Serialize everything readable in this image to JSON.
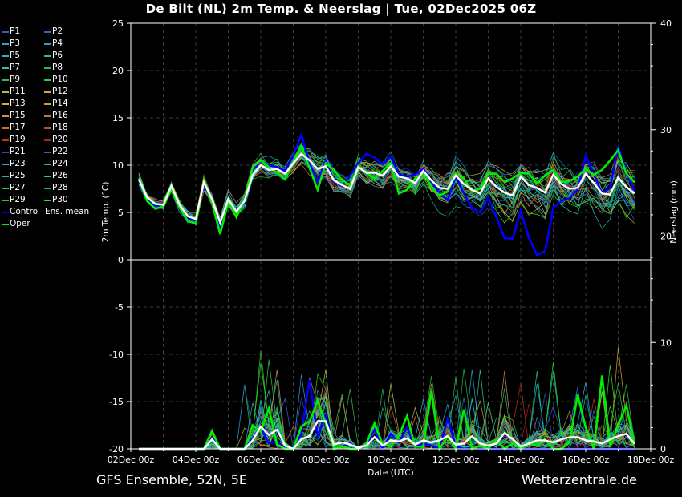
{
  "title": "De Bilt  (NL)  2m Temp. & Neerslag | Tue, 02Dec2025 06Z",
  "footer_left": "GFS Ensemble, 52N, 5E",
  "footer_right": "Wetterzentrale.de",
  "colors": {
    "background": "#000000",
    "control": "#0000ff",
    "oper": "#00ee00",
    "mean": "#ffffff",
    "grid": "#3a3a3a"
  },
  "legend": [
    {
      "label": "P1",
      "color": "#2f5fd0"
    },
    {
      "label": "P2",
      "color": "#2a6ad8"
    },
    {
      "label": "P3",
      "color": "#2e9fd8"
    },
    {
      "label": "P4",
      "color": "#2a9dc0"
    },
    {
      "label": "P5",
      "color": "#22b8c8"
    },
    {
      "label": "P6",
      "color": "#20c0a0"
    },
    {
      "label": "P7",
      "color": "#20c890"
    },
    {
      "label": "P8",
      "color": "#20b868"
    },
    {
      "label": "P9",
      "color": "#30c050"
    },
    {
      "label": "P10",
      "color": "#28d030"
    },
    {
      "label": "P11",
      "color": "#a8c040"
    },
    {
      "label": "P12",
      "color": "#c8b030"
    },
    {
      "label": "P13",
      "color": "#c8b040"
    },
    {
      "label": "P14",
      "color": "#d0a030"
    },
    {
      "label": "P15",
      "color": "#c89060"
    },
    {
      "label": "P16",
      "color": "#c07840"
    },
    {
      "label": "P17",
      "color": "#d07030"
    },
    {
      "label": "P18",
      "color": "#c05030"
    },
    {
      "label": "P19",
      "color": "#c03020"
    },
    {
      "label": "P20",
      "color": "#b02020"
    },
    {
      "label": "P21",
      "color": "#2848c0"
    },
    {
      "label": "P22",
      "color": "#2070c8"
    },
    {
      "label": "P23",
      "color": "#30a0e0"
    },
    {
      "label": "P24",
      "color": "#28b0d8"
    },
    {
      "label": "P25",
      "color": "#20b8b0"
    },
    {
      "label": "P26",
      "color": "#20c8a8"
    },
    {
      "label": "P27",
      "color": "#20c078"
    },
    {
      "label": "P28",
      "color": "#18b850"
    },
    {
      "label": "P29",
      "color": "#28c838"
    },
    {
      "label": "P30",
      "color": "#30e020"
    },
    {
      "label": "Control",
      "color": "#0000ff"
    },
    {
      "label": "Ens. mean",
      "color": "#ffffff"
    },
    {
      "label": "Oper",
      "color": "#00ee00"
    }
  ],
  "chart_data": {
    "type": "line",
    "xlabel": "Date (UTC)",
    "ylabel": "2m Temp. (°C)",
    "ylabel_right": "Neerslag (mm)",
    "ylim": [
      -20,
      25
    ],
    "ylim_right": [
      0,
      40
    ],
    "yticks": [
      -20,
      -15,
      -10,
      -5,
      0,
      5,
      10,
      15,
      20,
      25
    ],
    "yticks_right": [
      0,
      10,
      20,
      30,
      40
    ],
    "xlim_days": [
      0,
      16
    ],
    "xticks": [
      "02Dec 00z",
      "04Dec 00z",
      "06Dec 00z",
      "08Dec 00z",
      "10Dec 00z",
      "12Dec 00z",
      "14Dec 00z",
      "16Dec 00z",
      "18Dec 00z"
    ],
    "time_step_hours": 6,
    "start": "02Dec 06z",
    "grid": true,
    "temperature_series": [
      {
        "name": "Ens. mean",
        "values": [
          8.5,
          6.6,
          5.9,
          5.8,
          7.8,
          5.8,
          4.6,
          4.3,
          8.2,
          6.4,
          3.9,
          6.4,
          5.1,
          6.2,
          9.0,
          10.0,
          9.5,
          9.6,
          9.1,
          10.2,
          11.2,
          10.5,
          9.6,
          9.9,
          8.4,
          7.9,
          7.5,
          9.8,
          9.2,
          9.2,
          8.9,
          9.9,
          8.8,
          8.6,
          8.1,
          9.4,
          8.4,
          7.6,
          7.5,
          8.9,
          8.0,
          7.4,
          7.0,
          8.6,
          7.7,
          7.1,
          6.8,
          8.8,
          7.9,
          7.6,
          7.1,
          9.0,
          8.0,
          7.5,
          7.6,
          9.1,
          8.1,
          7.0,
          6.9,
          8.7,
          7.7,
          7.0
        ]
      },
      {
        "name": "Control",
        "values": [
          8.3,
          6.5,
          5.7,
          5.6,
          7.5,
          5.6,
          4.4,
          4.1,
          8.0,
          6.1,
          3.4,
          6.3,
          5.2,
          6.0,
          9.5,
          10.4,
          10.0,
          9.8,
          9.4,
          11.0,
          13.2,
          10.2,
          8.2,
          10.5,
          8.3,
          7.8,
          8.9,
          10.2,
          11.2,
          10.8,
          10.1,
          10.9,
          9.0,
          8.8,
          9.0,
          9.6,
          8.3,
          7.0,
          6.3,
          8.8,
          7.0,
          5.5,
          5.0,
          6.5,
          4.5,
          2.3,
          2.2,
          5.2,
          2.3,
          0.5,
          0.9,
          5.5,
          6.2,
          6.5,
          7.4,
          11.0,
          9.0,
          7.0,
          7.6,
          12.0,
          9.3,
          7.3
        ]
      },
      {
        "name": "Oper",
        "values": [
          8.6,
          6.2,
          5.4,
          5.6,
          7.4,
          5.5,
          4.1,
          3.8,
          8.4,
          6.0,
          2.7,
          6.1,
          4.5,
          6.3,
          9.8,
          10.5,
          9.8,
          9.2,
          8.5,
          10.4,
          12.1,
          9.7,
          7.4,
          10.2,
          9.5,
          8.4,
          7.9,
          9.9,
          9.2,
          8.6,
          9.4,
          10.2,
          7.0,
          7.4,
          8.6,
          9.1,
          7.7,
          6.8,
          7.2,
          9.1,
          8.6,
          7.3,
          7.5,
          9.1,
          9.1,
          8.2,
          8.6,
          9.2,
          9.1,
          8.1,
          8.9,
          9.5,
          8.2,
          8.3,
          8.8,
          9.6,
          9.0,
          9.5,
          10.5,
          11.6,
          9.1,
          8.2
        ]
      }
    ],
    "precipitation_series": [
      {
        "name": "Ens. mean",
        "values": [
          0,
          0,
          0,
          0,
          0,
          0,
          0,
          0,
          0,
          0.9,
          0,
          0,
          0,
          0,
          0.8,
          2.1,
          1.3,
          1.8,
          0.3,
          0,
          0.9,
          1.2,
          2.6,
          2.6,
          0.4,
          0.6,
          0.4,
          0.1,
          0.3,
          1.1,
          0.3,
          0.8,
          0.7,
          1.0,
          0.4,
          0.8,
          0.6,
          0.8,
          1.2,
          0.4,
          0.5,
          1.2,
          0.5,
          0.3,
          0.5,
          1.5,
          0.9,
          0.2,
          0.5,
          0.8,
          0.8,
          0.6,
          0.9,
          1.1,
          1.1,
          0.8,
          0.7,
          0.5,
          0.9,
          1.2,
          1.4,
          0.5
        ]
      },
      {
        "name": "Control",
        "values": [
          0,
          0,
          0,
          0,
          0,
          0,
          0,
          0,
          0,
          1.0,
          0,
          0,
          0,
          0,
          1.0,
          2.0,
          0.5,
          0.7,
          0,
          0.1,
          1.4,
          6.5,
          1.2,
          3.2,
          0,
          0.2,
          0.5,
          0,
          0.3,
          1.8,
          0,
          1.4,
          0.6,
          2.0,
          0.2,
          0.5,
          0.3,
          0,
          2.8,
          0.2,
          0,
          0.1,
          0,
          0,
          0,
          0,
          0,
          0,
          0,
          0,
          0,
          0,
          0,
          0,
          0,
          0,
          0,
          0,
          0,
          0,
          0,
          0
        ]
      },
      {
        "name": "Oper",
        "values": [
          0,
          0,
          0,
          0,
          0,
          0,
          0,
          0,
          0,
          1.7,
          0,
          0,
          0,
          0,
          2.2,
          1.6,
          3.8,
          0.4,
          0,
          0,
          2.1,
          2.6,
          4.5,
          2.4,
          0,
          0.2,
          0,
          0,
          0.5,
          2.4,
          0.4,
          0.2,
          1.2,
          3.1,
          0.2,
          0.2,
          5.4,
          0,
          1.2,
          0,
          3.7,
          0,
          0.3,
          0,
          0.8,
          0,
          0.5,
          0,
          0.5,
          0.3,
          0.9,
          0,
          0,
          0.6,
          5.1,
          2.0,
          0,
          6.9,
          0.2,
          2.2,
          4.1,
          0.4
        ]
      }
    ]
  }
}
